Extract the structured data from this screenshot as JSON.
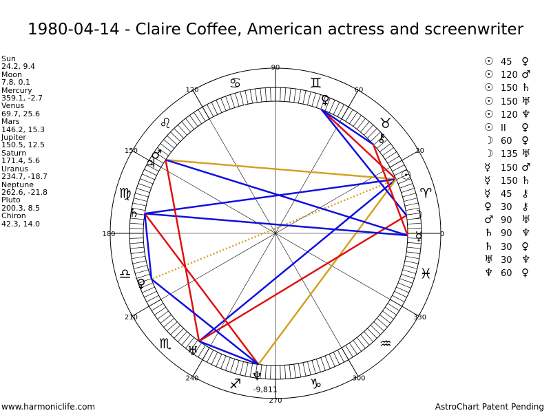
{
  "title": "1980-04-14 - Claire Coffee, American actress and screenwriter",
  "planets": [
    {
      "name": "Sun",
      "coords": "24.2, 9.4",
      "glyph": "☉",
      "lon": 24.2
    },
    {
      "name": "Moon",
      "coords": "7.8, 0.1",
      "glyph": "☽",
      "lon": 7.8
    },
    {
      "name": "Mercury",
      "coords": "359.1, -2.7",
      "glyph": "☿",
      "lon": 359.1
    },
    {
      "name": "Venus",
      "coords": "69.7, 25.6",
      "glyph": "♀",
      "lon": 69.7
    },
    {
      "name": "Mars",
      "coords": "146.2, 15.3",
      "glyph": "♂",
      "lon": 146.2
    },
    {
      "name": "Jupiter",
      "coords": "150.5, 12.5",
      "glyph": "♃",
      "lon": 150.5
    },
    {
      "name": "Saturn",
      "coords": "171.4, 5.6",
      "glyph": "♄",
      "lon": 171.4
    },
    {
      "name": "Uranus",
      "coords": "234.7, -18.7",
      "glyph": "♅",
      "lon": 234.7
    },
    {
      "name": "Neptune",
      "coords": "262.6, -21.8",
      "glyph": "♆",
      "lon": 262.6
    },
    {
      "name": "Pluto",
      "coords": "200.3, 8.5",
      "glyph": "♀",
      "lon": 200.3
    },
    {
      "name": "Chiron",
      "coords": "42.3, 14.0",
      "glyph": "⚷",
      "lon": 42.3
    }
  ],
  "aspects": [
    {
      "p1": "☉",
      "angle": "45",
      "p2": "♀"
    },
    {
      "p1": "☉",
      "angle": "120",
      "p2": "♂"
    },
    {
      "p1": "☉",
      "angle": "150",
      "p2": "♄"
    },
    {
      "p1": "☉",
      "angle": "150",
      "p2": "♅"
    },
    {
      "p1": "☉",
      "angle": "120",
      "p2": "♆"
    },
    {
      "p1": "☉",
      "angle": "II",
      "p2": "♀"
    },
    {
      "p1": "☽",
      "angle": "60",
      "p2": "♀"
    },
    {
      "p1": "☽",
      "angle": "135",
      "p2": "♅"
    },
    {
      "p1": "☿",
      "angle": "150",
      "p2": "♂"
    },
    {
      "p1": "☿",
      "angle": "150",
      "p2": "♄"
    },
    {
      "p1": "☿",
      "angle": "45",
      "p2": "⚷"
    },
    {
      "p1": "♀",
      "angle": "30",
      "p2": "⚷"
    },
    {
      "p1": "♂",
      "angle": "90",
      "p2": "♅"
    },
    {
      "p1": "♄",
      "angle": "90",
      "p2": "♆"
    },
    {
      "p1": "♄",
      "angle": "30",
      "p2": "♀"
    },
    {
      "p1": "♅",
      "angle": "30",
      "p2": "♆"
    },
    {
      "p1": "♆",
      "angle": "60",
      "p2": "♀"
    }
  ],
  "degree_labels": [
    "90",
    "60",
    "30",
    "0",
    "330",
    "300",
    "270",
    "240",
    "210",
    "180",
    "150",
    "120"
  ],
  "degree_values": [
    90,
    60,
    30,
    0,
    330,
    300,
    270,
    240,
    210,
    180,
    150,
    120
  ],
  "zodiac_glyphs": [
    "♈",
    "♉",
    "♊",
    "♋",
    "♌",
    "♍",
    "♎",
    "♏",
    "♐",
    "♑",
    "♒",
    "♓"
  ],
  "neptune_extra": "-9,811",
  "aspect_lines": [
    {
      "a": 24.2,
      "b": 69.7,
      "color": "#e01010"
    },
    {
      "a": 24.2,
      "b": 146.2,
      "color": "#d4a020"
    },
    {
      "a": 24.2,
      "b": 171.4,
      "color": "#1010e0"
    },
    {
      "a": 24.2,
      "b": 234.7,
      "color": "#1010e0"
    },
    {
      "a": 24.2,
      "b": 262.6,
      "color": "#d4a020"
    },
    {
      "a": 24.2,
      "b": 200.3,
      "color": "#d4a020",
      "dotted": true
    },
    {
      "a": 7.8,
      "b": 69.7,
      "color": "#1010e0"
    },
    {
      "a": 7.8,
      "b": 234.7,
      "color": "#e01010"
    },
    {
      "a": 359.1,
      "b": 146.2,
      "color": "#1010e0"
    },
    {
      "a": 359.1,
      "b": 171.4,
      "color": "#1010e0"
    },
    {
      "a": 359.1,
      "b": 42.3,
      "color": "#e01010"
    },
    {
      "a": 69.7,
      "b": 42.3,
      "color": "#1010e0"
    },
    {
      "a": 146.2,
      "b": 234.7,
      "color": "#e01010"
    },
    {
      "a": 171.4,
      "b": 262.6,
      "color": "#e01010"
    },
    {
      "a": 171.4,
      "b": 200.3,
      "color": "#1010e0"
    },
    {
      "a": 234.7,
      "b": 262.6,
      "color": "#1010e0"
    },
    {
      "a": 262.6,
      "b": 200.3,
      "color": "#1010e0"
    }
  ],
  "footer_left": "www.harmoniclife.com",
  "footer_right": "AstroChart Patent Pending"
}
